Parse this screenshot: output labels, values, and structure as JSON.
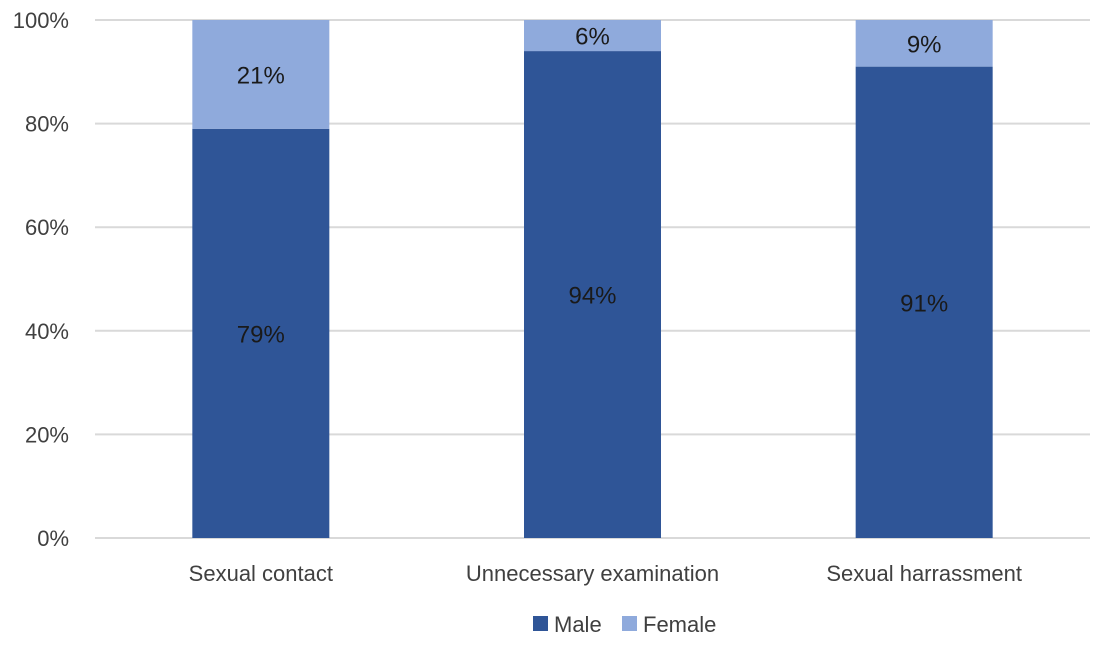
{
  "chart_data": {
    "type": "bar",
    "stacked": true,
    "categories": [
      "Sexual contact",
      "Unnecessary examination",
      "Sexual harrassment"
    ],
    "series": [
      {
        "name": "Male",
        "values": [
          79,
          94,
          91
        ],
        "labels": [
          "79%",
          "94%",
          "91%"
        ],
        "color": "#2f5597"
      },
      {
        "name": "Female",
        "values": [
          21,
          6,
          9
        ],
        "labels": [
          "21%",
          "6%",
          "9%"
        ],
        "color": "#8faadc"
      }
    ],
    "yticks": [
      0,
      20,
      40,
      60,
      80,
      100
    ],
    "ytick_labels": [
      "0%",
      "20%",
      "40%",
      "60%",
      "80%",
      "100%"
    ],
    "ylim": [
      0,
      100
    ],
    "title": "",
    "xlabel": "",
    "ylabel": "",
    "grid": true,
    "legend_position": "bottom"
  }
}
